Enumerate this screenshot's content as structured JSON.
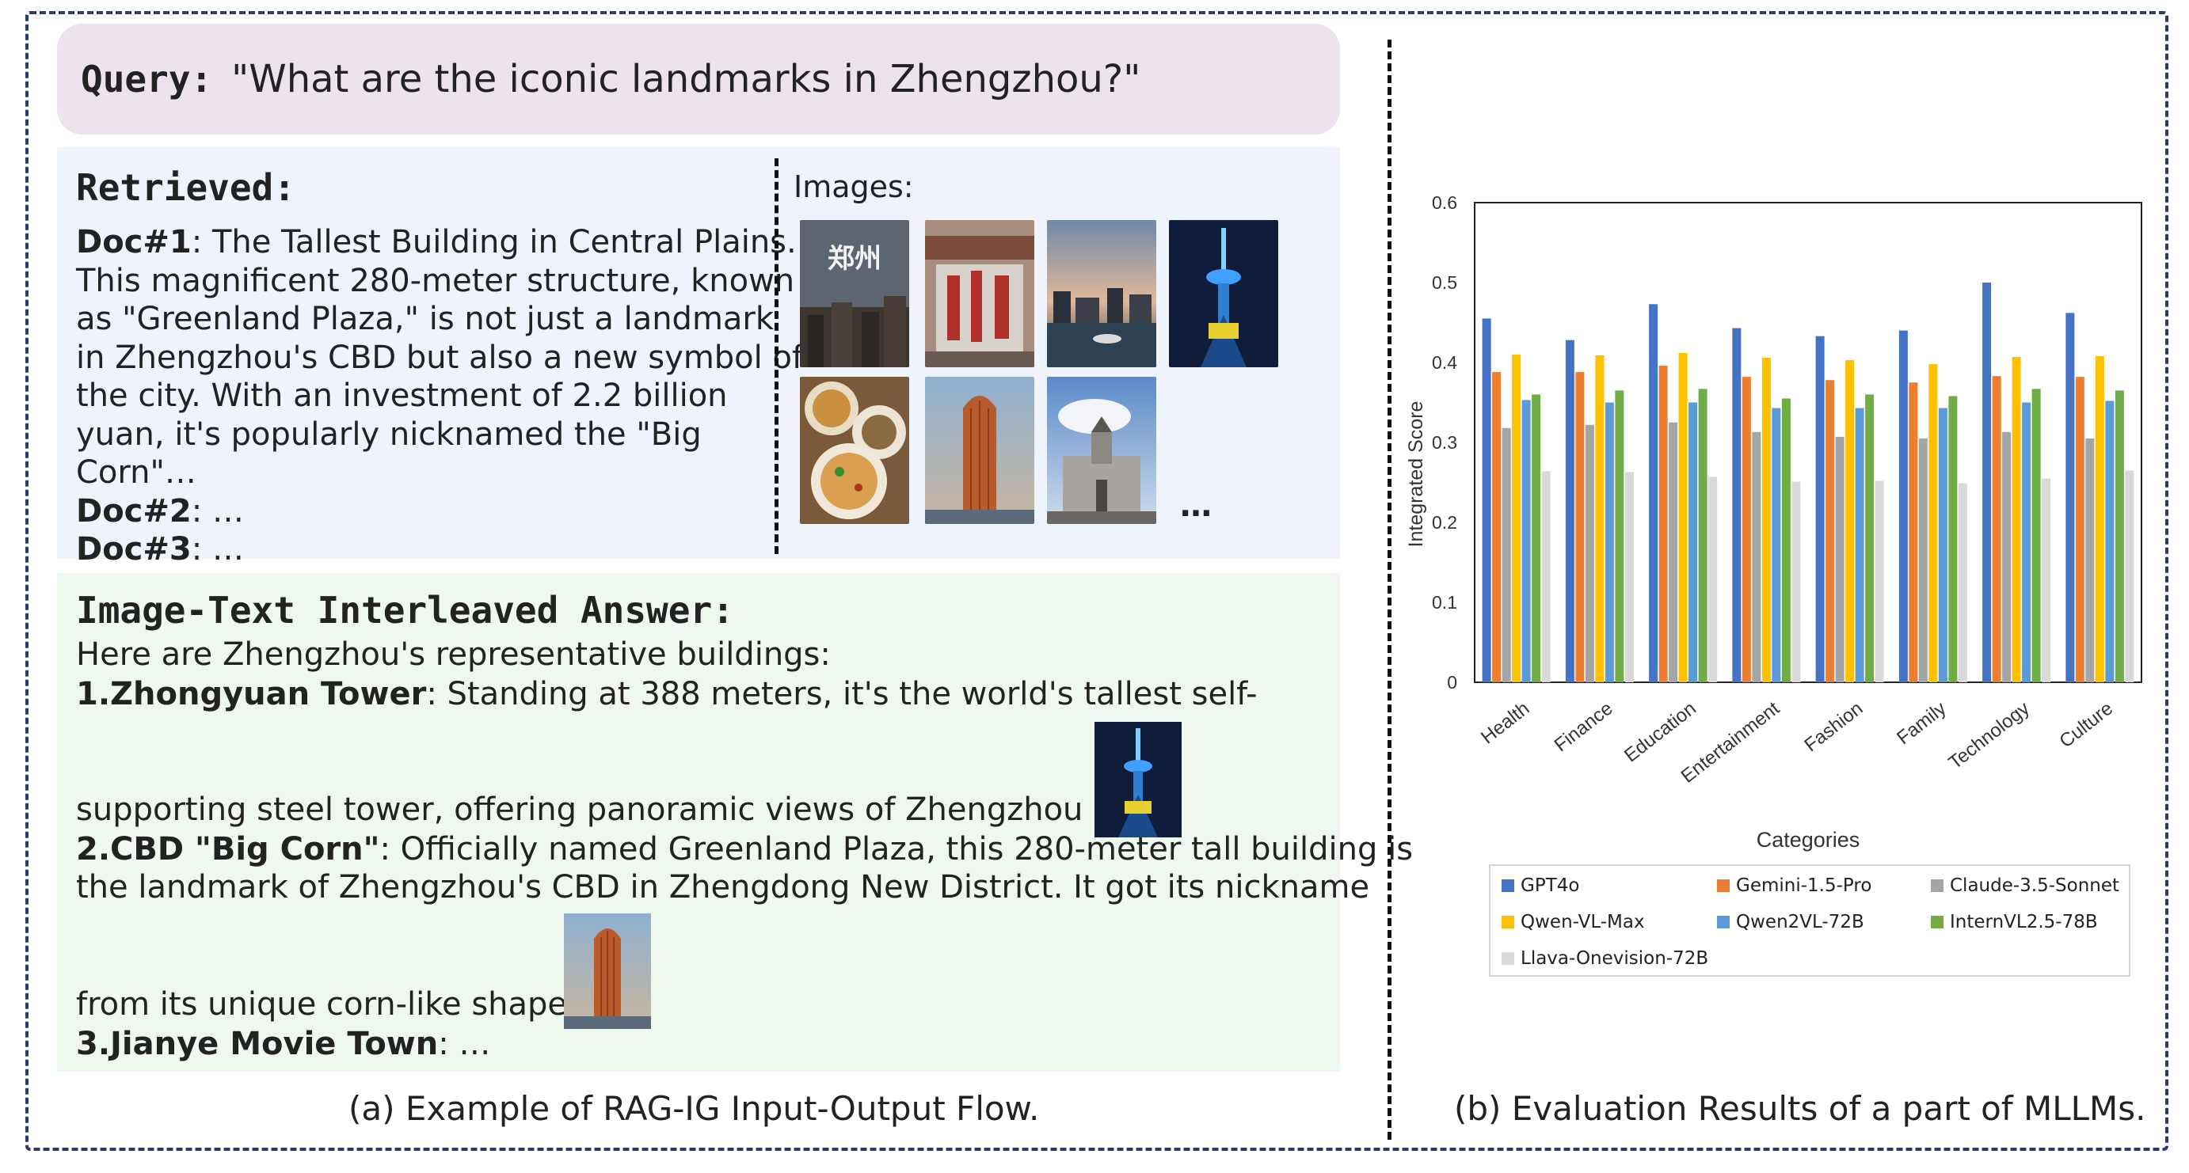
{
  "query": {
    "label": "Query:",
    "text": "\"What are the iconic landmarks in Zhengzhou?\""
  },
  "retrieved": {
    "title": "Retrieved:",
    "doc1_label": "Doc#1",
    "doc1_text": ": The Tallest Building in Central Plains. This magnificent 280-meter structure, known as \"Greenland Plaza,\" is not just a landmark in Zhengzhou's CBD but also a new symbol of the city. With an investment of 2.2 billion yuan, it's popularly nicknamed the \"Big Corn\"…",
    "doc2_label": "Doc#2",
    "doc2_text": ": …",
    "doc3_label": "Doc#3",
    "doc3_text": ": …",
    "images_label": "Images:",
    "images_more": "…"
  },
  "answer": {
    "title": "Image-Text Interleaved Answer:",
    "intro": "Here are Zhengzhou's representative buildings:",
    "item1_label": "1.Zhongyuan Tower",
    "item1_text_a": ": Standing at 388 meters, it's the world's tallest self-",
    "item1_text_b": "supporting steel tower, offering panoramic views of Zhengzhou city.",
    "item2_label": "2.CBD \"Big Corn\"",
    "item2_text_a": ": Officially named Greenland Plaza, this 280-meter tall building is",
    "item2_text_b": "the landmark of Zhengzhou's CBD in Zhengdong New District. It got its nickname",
    "item2_text_c": "from its unique corn-like shape.",
    "item3_label": "3.Jianye Movie Town",
    "item3_text": ": …"
  },
  "captions": {
    "left": "(a)  Example of RAG-IG Input-Output Flow.",
    "right": "(b) Evaluation Results of a part of MLLMs."
  },
  "chart_data": {
    "type": "bar",
    "title": "",
    "xlabel": "Categories",
    "ylabel": "Integrated Score",
    "ylim": [
      0,
      0.6
    ],
    "yticks": [
      "0",
      "0.1",
      "0.2",
      "0.3",
      "0.4",
      "0.5",
      "0.6"
    ],
    "categories": [
      "Health",
      "Finance",
      "Education",
      "Entertainment",
      "Fashion",
      "Family",
      "Technology",
      "Culture"
    ],
    "legend_position": "bottom",
    "series": [
      {
        "name": "GPT4o",
        "color": "#4472c4",
        "values": [
          0.455,
          0.428,
          0.473,
          0.443,
          0.433,
          0.44,
          0.5,
          0.462
        ]
      },
      {
        "name": "Gemini-1.5-Pro",
        "color": "#ed7d31",
        "values": [
          0.388,
          0.388,
          0.396,
          0.382,
          0.378,
          0.375,
          0.383,
          0.382
        ]
      },
      {
        "name": "Claude-3.5-Sonnet",
        "color": "#a5a5a5",
        "values": [
          0.318,
          0.322,
          0.325,
          0.313,
          0.307,
          0.305,
          0.313,
          0.305
        ]
      },
      {
        "name": "Qwen-VL-Max",
        "color": "#ffc000",
        "values": [
          0.41,
          0.409,
          0.412,
          0.406,
          0.403,
          0.398,
          0.407,
          0.408
        ]
      },
      {
        "name": "Qwen2VL-72B",
        "color": "#5b9bd5",
        "values": [
          0.353,
          0.35,
          0.35,
          0.343,
          0.343,
          0.343,
          0.35,
          0.352
        ]
      },
      {
        "name": "InternVL2.5-78B",
        "color": "#70ad47",
        "values": [
          0.36,
          0.365,
          0.367,
          0.355,
          0.36,
          0.358,
          0.367,
          0.365
        ]
      },
      {
        "name": "Llava-Onevision-72B",
        "color": "#d9d9d9",
        "values": [
          0.264,
          0.263,
          0.257,
          0.251,
          0.252,
          0.249,
          0.255,
          0.265
        ]
      }
    ]
  }
}
